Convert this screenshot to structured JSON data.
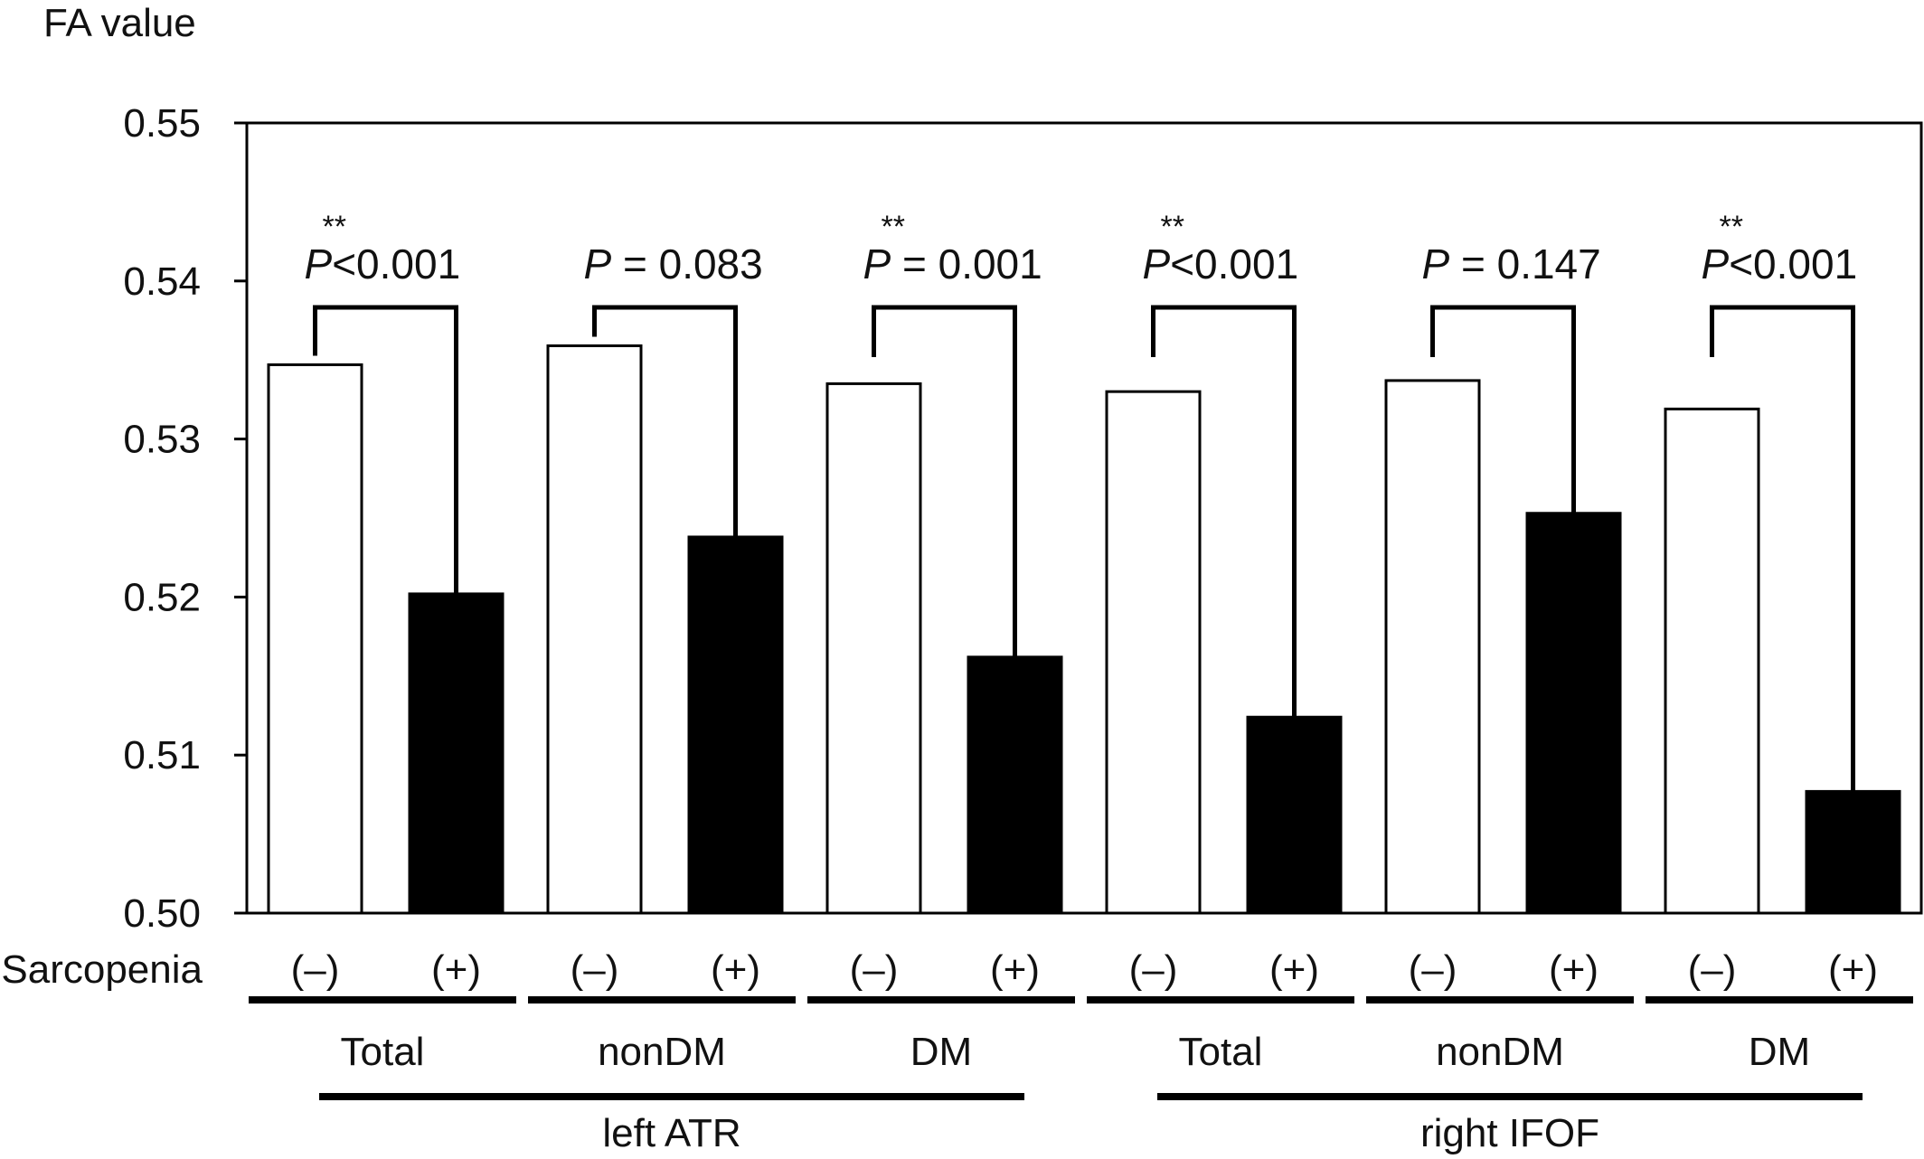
{
  "chart_data": {
    "type": "bar",
    "ylabel": "FA value",
    "ylim": [
      0.5,
      0.55
    ],
    "y_ticks": [
      "0.50",
      "0.51",
      "0.52",
      "0.53",
      "0.54",
      "0.55"
    ],
    "row_label": "Sarcopenia",
    "bar_labels": [
      "(–)",
      "(+)"
    ],
    "colors": {
      "negative": "#ffffff",
      "positive": "#000000",
      "outline": "#000000"
    },
    "groups": [
      {
        "tract": "left ATR",
        "subgroup": "Total",
        "values": [
          0.5347,
          0.5202
        ],
        "significance": "**",
        "p_label": "P",
        "p_value_text": "<0.001"
      },
      {
        "tract": "left ATR",
        "subgroup": "nonDM",
        "values": [
          0.5359,
          0.5238
        ],
        "significance": "",
        "p_label": "P",
        "p_value_text": " = 0.083"
      },
      {
        "tract": "left ATR",
        "subgroup": "DM",
        "values": [
          0.5335,
          0.5162
        ],
        "significance": "**",
        "p_label": "P",
        "p_value_text": " = 0.001"
      },
      {
        "tract": "right IFOF",
        "subgroup": "Total",
        "values": [
          0.533,
          0.5124
        ],
        "significance": "**",
        "p_label": "P",
        "p_value_text": "<0.001"
      },
      {
        "tract": "right IFOF",
        "subgroup": "nonDM",
        "values": [
          0.5337,
          0.5253
        ],
        "significance": "",
        "p_label": "P",
        "p_value_text": " = 0.147"
      },
      {
        "tract": "right IFOF",
        "subgroup": "DM",
        "values": [
          0.5319,
          0.5077
        ],
        "significance": "**",
        "p_label": "P",
        "p_value_text": "<0.001"
      }
    ],
    "tracts": [
      "left ATR",
      "right IFOF"
    ]
  }
}
